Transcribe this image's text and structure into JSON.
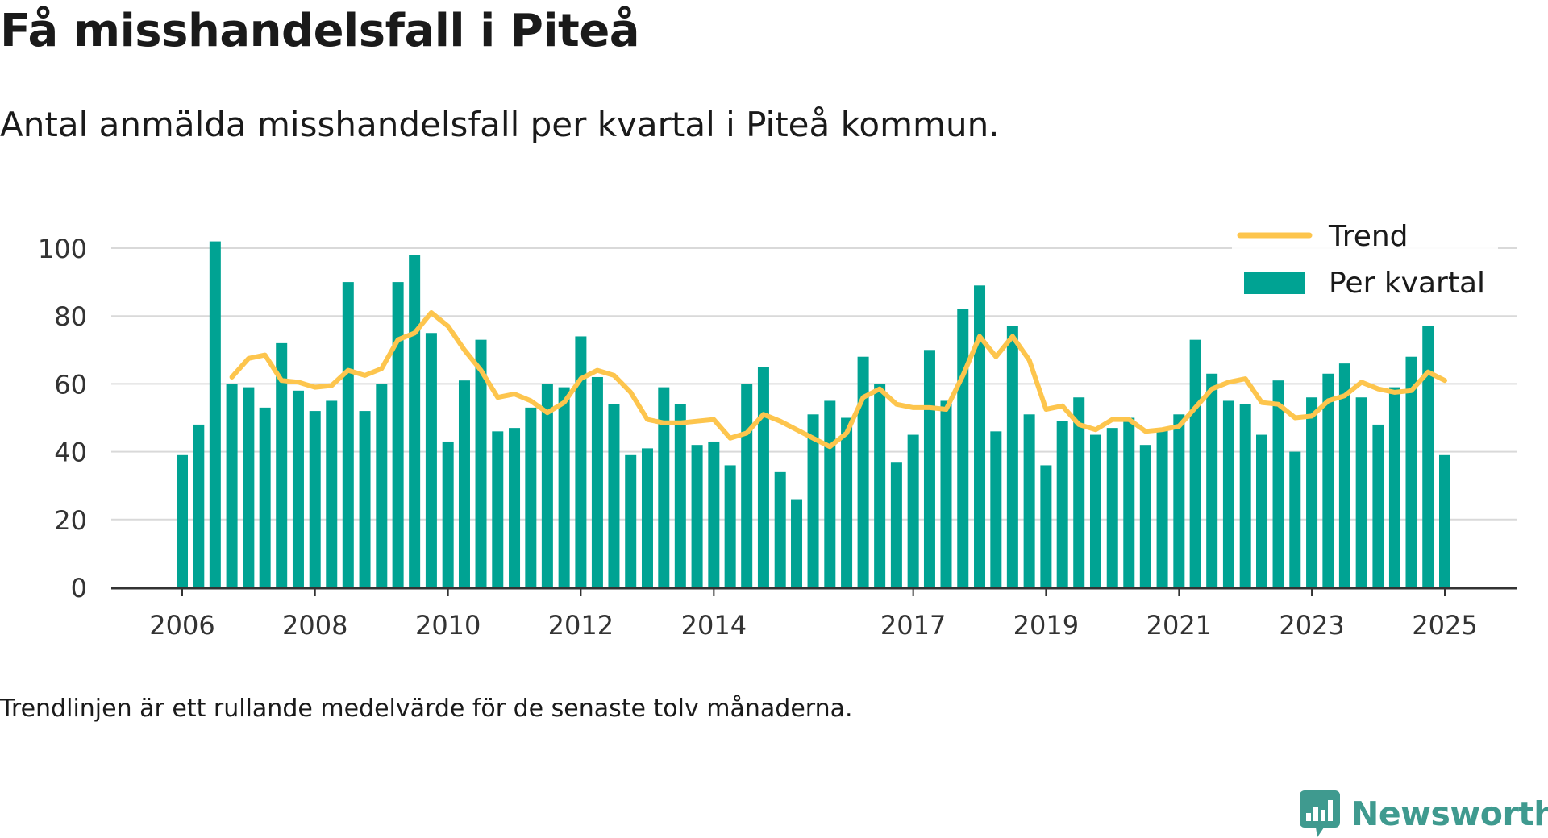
{
  "title": "Få misshandelsfall i Piteå",
  "subtitle": "Antal anmälda misshandelsfall per kvartal i Piteå kommun.",
  "note": "Trendlinjen är ett rullande medelvärde för de senaste tolv månaderna.",
  "brand": {
    "name": "Newsworthy",
    "logo_icon": "bar-chart-icon",
    "color": "#3f9a8f"
  },
  "colors": {
    "bars": "#00a393",
    "trend": "#fdc54d",
    "grid": "#d9d9d9",
    "axis": "#333333"
  },
  "chart_data": {
    "type": "bar",
    "title": "Få misshandelsfall i Piteå",
    "subtitle": "Antal anmälda misshandelsfall per kvartal i Piteå kommun.",
    "xlabel": "",
    "ylabel": "",
    "ylim": [
      0,
      100
    ],
    "yticks": [
      0,
      20,
      40,
      60,
      80,
      100
    ],
    "xtick_labels": [
      "2006",
      "2008",
      "2010",
      "2012",
      "2014",
      "2017",
      "2019",
      "2021",
      "2023",
      "2025"
    ],
    "grid": true,
    "legend_position": "top-right",
    "series": [
      {
        "name": "Per kvartal",
        "type": "bar",
        "x": [
          "2006-01-01",
          "2006-04-01",
          "2006-07-01",
          "2006-10-01",
          "2007-01-01",
          "2007-04-01",
          "2007-07-01",
          "2007-10-01",
          "2008-01-01",
          "2008-04-01",
          "2008-07-01",
          "2008-10-01",
          "2009-01-01",
          "2009-04-01",
          "2009-07-01",
          "2009-10-01",
          "2010-01-01",
          "2010-04-01",
          "2010-07-01",
          "2010-10-01",
          "2011-01-01",
          "2011-04-01",
          "2011-07-01",
          "2011-10-01",
          "2012-01-01",
          "2012-04-01",
          "2012-07-01",
          "2012-10-01",
          "2013-01-01",
          "2013-04-01",
          "2013-07-01",
          "2013-10-01",
          "2014-01-01",
          "2014-04-01",
          "2014-07-01",
          "2014-10-01",
          "2015-01-01",
          "2015-04-01",
          "2015-07-01",
          "2015-10-01",
          "2016-01-01",
          "2016-04-01",
          "2016-07-01",
          "2016-10-01",
          "2017-01-01",
          "2017-04-01",
          "2017-07-01",
          "2017-10-01",
          "2018-01-01",
          "2018-04-01",
          "2018-07-01",
          "2018-10-01",
          "2019-01-01",
          "2019-04-01",
          "2019-07-01",
          "2019-10-01",
          "2020-01-01",
          "2020-04-01",
          "2020-07-01",
          "2020-10-01",
          "2021-01-01",
          "2021-04-01",
          "2021-07-01",
          "2021-10-01",
          "2022-01-01",
          "2022-04-01",
          "2022-07-01",
          "2022-10-01",
          "2023-01-01",
          "2023-04-01",
          "2023-07-01",
          "2023-10-01",
          "2024-01-01",
          "2024-04-01",
          "2024-07-01",
          "2024-10-01",
          "2025-01-01"
        ],
        "values": [
          39,
          48,
          102,
          60,
          59,
          53,
          72,
          58,
          52,
          55,
          90,
          52,
          60,
          90,
          98,
          75,
          43,
          61,
          73,
          46,
          47,
          53,
          60,
          59,
          74,
          62,
          54,
          39,
          41,
          59,
          54,
          42,
          43,
          36,
          60,
          65,
          34,
          26,
          51,
          55,
          50,
          68,
          60,
          37,
          45,
          70,
          55,
          82,
          89,
          46,
          77,
          51,
          36,
          49,
          56,
          45,
          47,
          50,
          42,
          47,
          51,
          73,
          63,
          55,
          54,
          45,
          61,
          40,
          56,
          63,
          66,
          56,
          48,
          59,
          68,
          77,
          39
        ]
      },
      {
        "name": "Trend",
        "type": "line",
        "x": [
          "2006-10-01",
          "2007-01-01",
          "2007-04-01",
          "2007-07-01",
          "2007-10-01",
          "2008-01-01",
          "2008-04-01",
          "2008-07-01",
          "2008-10-01",
          "2009-01-01",
          "2009-04-01",
          "2009-07-01",
          "2009-10-01",
          "2010-01-01",
          "2010-04-01",
          "2010-07-01",
          "2010-10-01",
          "2011-01-01",
          "2011-04-01",
          "2011-07-01",
          "2011-10-01",
          "2012-01-01",
          "2012-04-01",
          "2012-07-01",
          "2012-10-01",
          "2013-01-01",
          "2013-04-01",
          "2013-07-01",
          "2013-10-01",
          "2014-01-01",
          "2014-04-01",
          "2014-07-01",
          "2014-10-01",
          "2015-01-01",
          "2015-04-01",
          "2015-07-01",
          "2015-10-01",
          "2016-01-01",
          "2016-04-01",
          "2016-07-01",
          "2016-10-01",
          "2017-01-01",
          "2017-04-01",
          "2017-07-01",
          "2017-10-01",
          "2018-01-01",
          "2018-04-01",
          "2018-07-01",
          "2018-10-01",
          "2019-01-01",
          "2019-04-01",
          "2019-07-01",
          "2019-10-01",
          "2020-01-01",
          "2020-04-01",
          "2020-07-01",
          "2020-10-01",
          "2021-01-01",
          "2021-04-01",
          "2021-07-01",
          "2021-10-01",
          "2022-01-01",
          "2022-04-01",
          "2022-07-01",
          "2022-10-01",
          "2023-01-01",
          "2023-04-01",
          "2023-07-01",
          "2023-10-01",
          "2024-01-01",
          "2024-04-01",
          "2024-07-01",
          "2024-10-01",
          "2025-01-01"
        ],
        "values": [
          62,
          67.5,
          68.5,
          61,
          60.5,
          59,
          59.5,
          64,
          62.5,
          64.5,
          73,
          75,
          81,
          77,
          70,
          64,
          56,
          57,
          55,
          51.5,
          54.5,
          61.5,
          64,
          62.5,
          57.5,
          49.5,
          48.5,
          48.5,
          49,
          49.5,
          44,
          45.5,
          51,
          49,
          46.5,
          44,
          41.5,
          45.5,
          56,
          58.5,
          54,
          53,
          53,
          52.5,
          62.5,
          74,
          68,
          74,
          67,
          52.5,
          53.5,
          48,
          46.5,
          49.5,
          49.5,
          46,
          46.5,
          47.5,
          53,
          58.5,
          60.5,
          61.5,
          54.5,
          54,
          50,
          50.5,
          55,
          56.5,
          60.5,
          58.5,
          57.5,
          58,
          63.5,
          61
        ]
      }
    ]
  }
}
